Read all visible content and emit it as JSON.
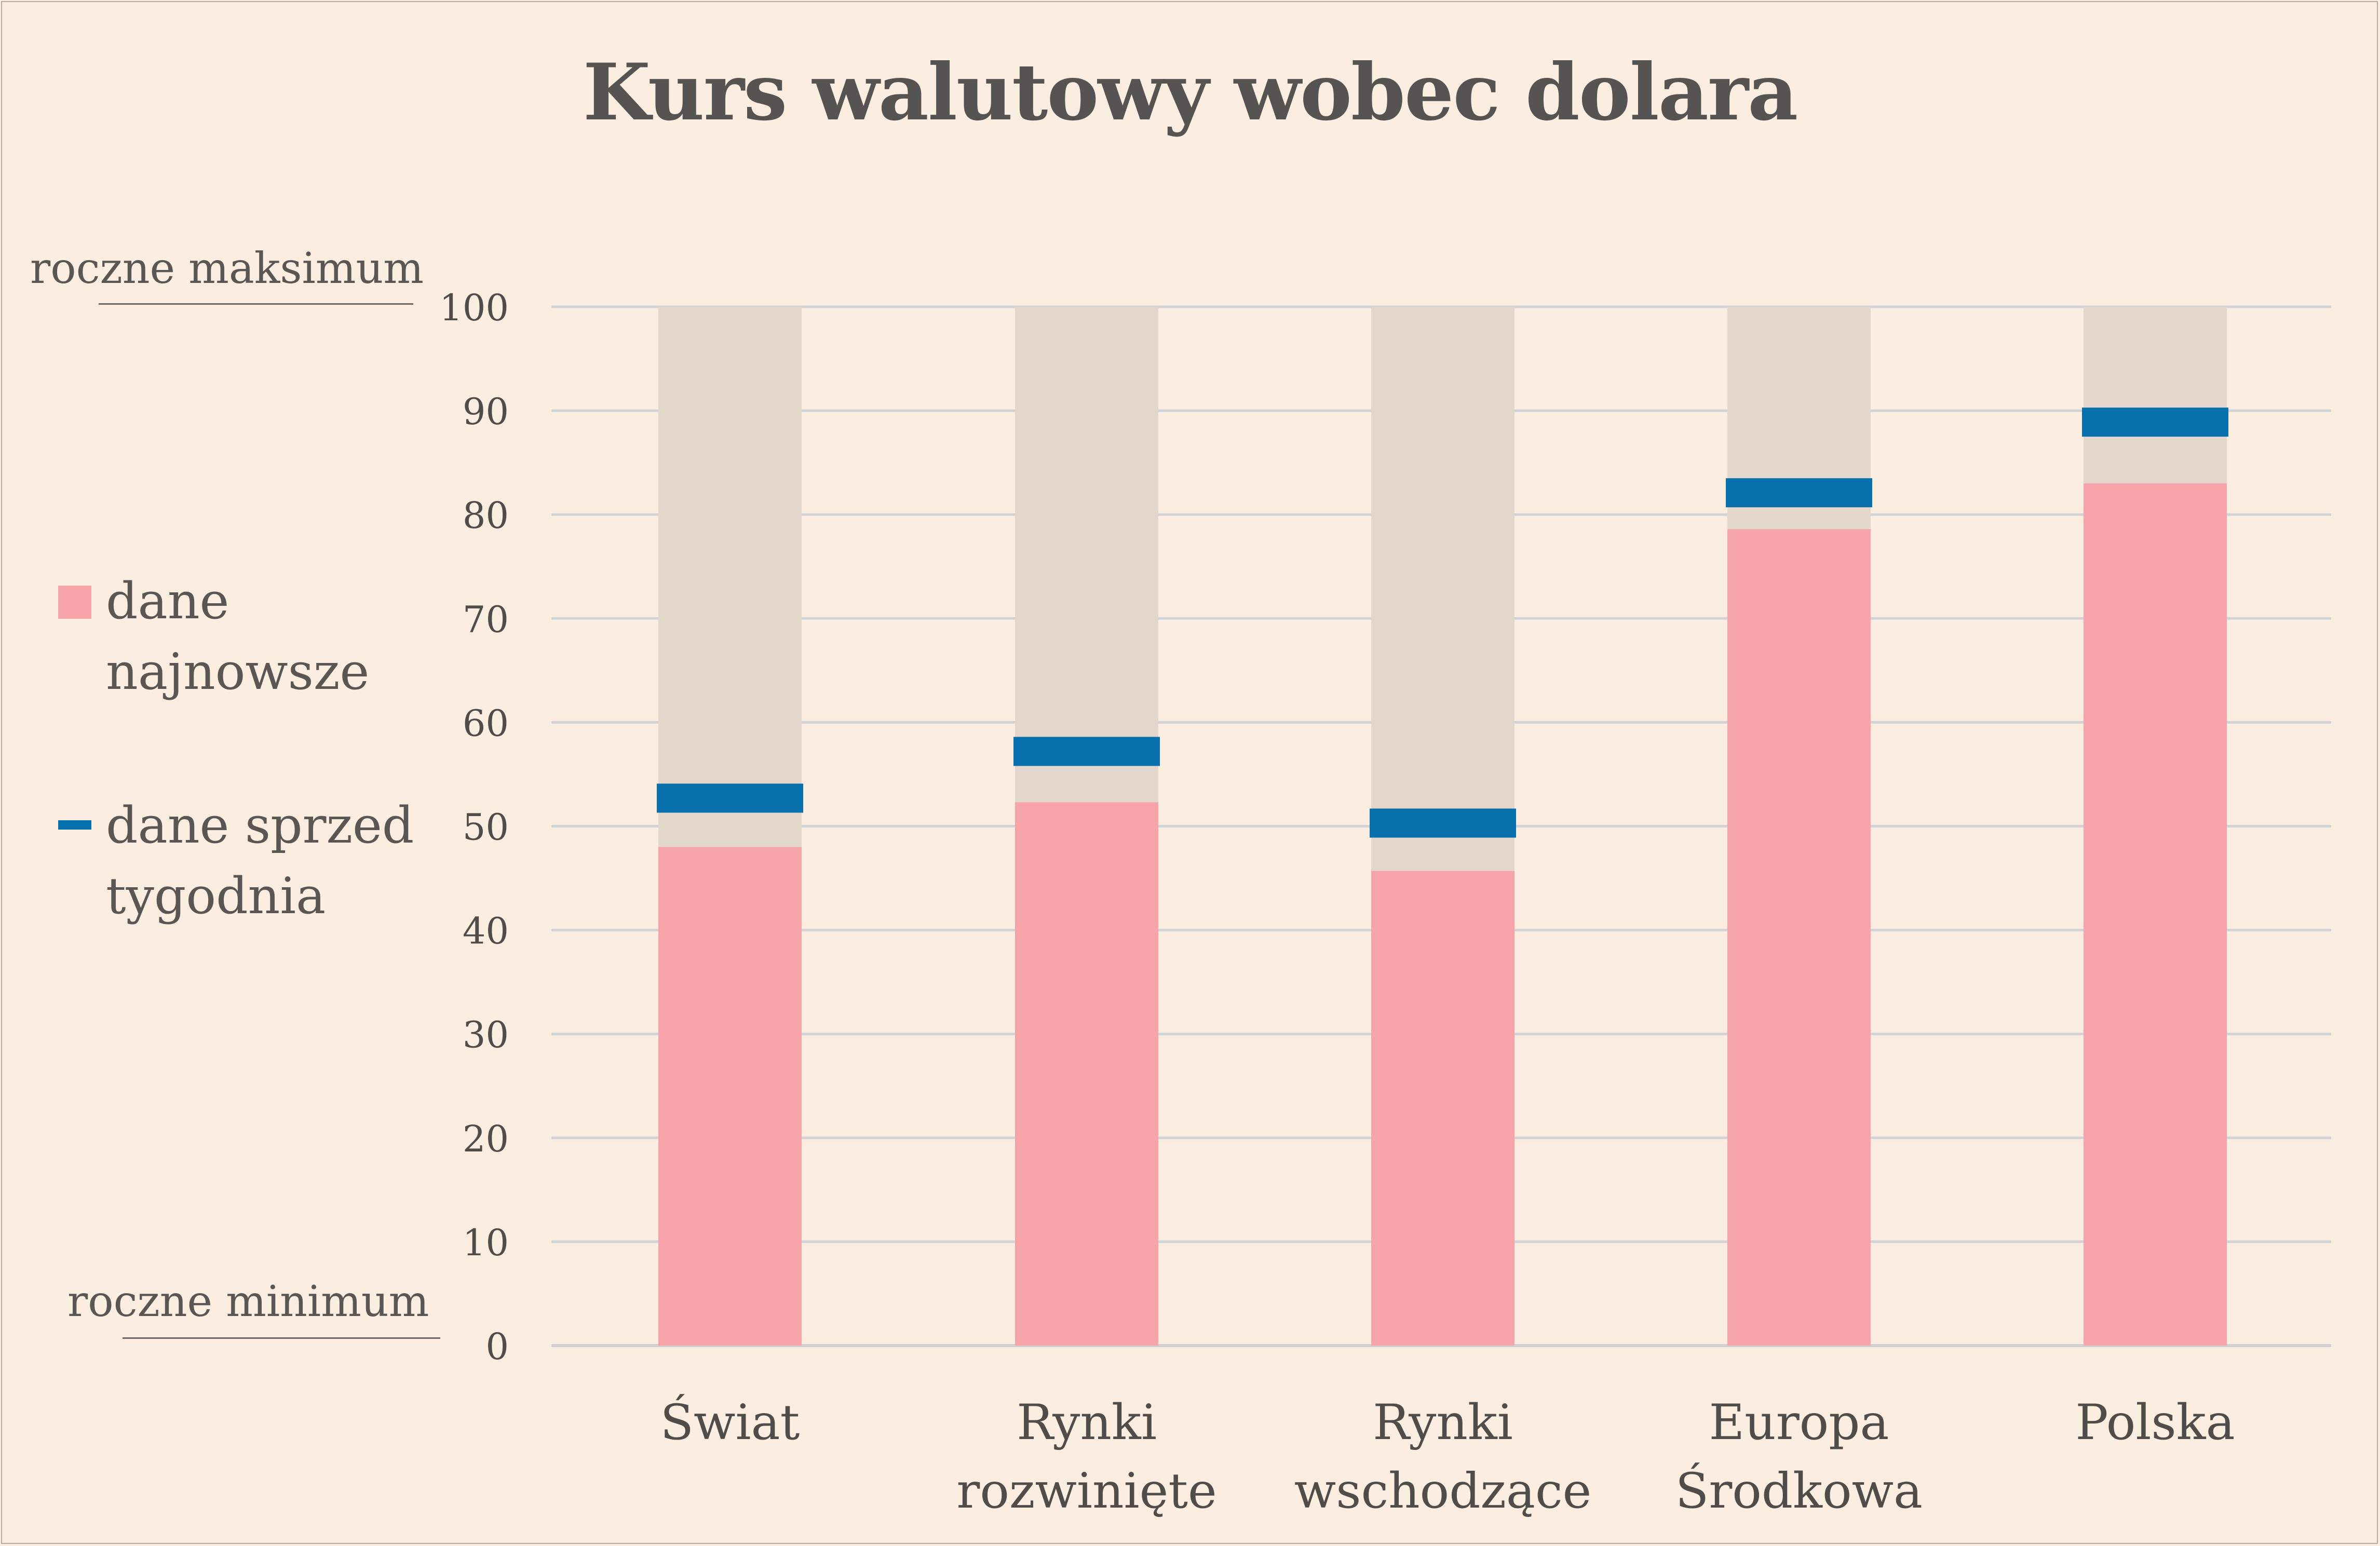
{
  "chart_data": {
    "type": "bar",
    "title": "Kurs walutowy wobec dolara",
    "categories": [
      [
        "Świat"
      ],
      [
        "Rynki",
        "rozwinięte"
      ],
      [
        "Rynki",
        "wschodzące"
      ],
      [
        "Europa",
        "Środkowa"
      ],
      [
        "Polska"
      ]
    ],
    "series": [
      {
        "name": "dane najnowsze",
        "values": [
          48,
          52.3,
          45.7,
          78.6,
          83
        ]
      },
      {
        "name": "dane sprzed tygodnia",
        "values": [
          52.7,
          57.2,
          50.3,
          82.1,
          88.9
        ]
      }
    ],
    "ylim": [
      0,
      100
    ],
    "yticks": [
      "0",
      "10",
      "20",
      "30",
      "40",
      "50",
      "60",
      "70",
      "80",
      "90",
      "100"
    ],
    "y_top_label": "roczne maksimum",
    "y_bottom_label": "roczne minimum",
    "legend": {
      "placement": "left",
      "items": [
        {
          "lines": [
            "dane",
            "najnowsze"
          ]
        },
        {
          "lines": [
            "dane sprzed",
            "tygodnia"
          ]
        }
      ]
    },
    "grid": true,
    "colors": {
      "latest": "#f6a4aa",
      "week_ago": "#0871ad",
      "range_band": "#e3d7cc",
      "grid": "#d3d3d7",
      "background": "#fbede0"
    }
  }
}
